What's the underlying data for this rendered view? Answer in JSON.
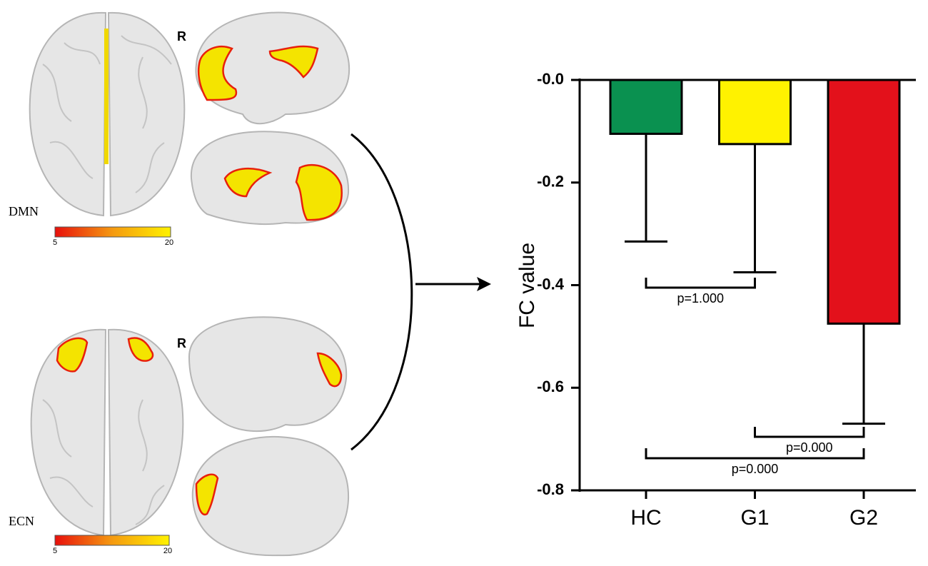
{
  "panels": {
    "dmn": {
      "label": "DMN",
      "side": "R",
      "scale_min": "5",
      "scale_max": "20"
    },
    "ecn": {
      "label": "ECN",
      "side": "R",
      "scale_min": "5",
      "scale_max": "20"
    }
  },
  "chart_data": {
    "type": "bar",
    "ylabel": "FC value",
    "categories": [
      "HC",
      "G1",
      "G2"
    ],
    "values": [
      -0.105,
      -0.125,
      -0.475
    ],
    "errors": [
      0.21,
      0.25,
      0.195
    ],
    "colors": [
      "#0a9150",
      "#fff200",
      "#e3111b"
    ],
    "ylim": [
      -0.8,
      0
    ],
    "yticks": [
      {
        "value": 0,
        "label": "-0.0"
      },
      -0.2,
      -0.4,
      -0.6,
      -0.8
    ],
    "annotations": [
      "p=1.000",
      "p=0.000",
      "p=0.000"
    ]
  }
}
